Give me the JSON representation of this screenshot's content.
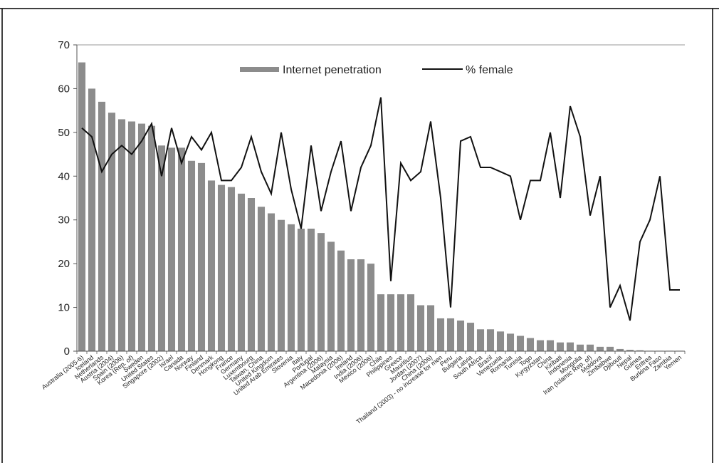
{
  "chart_data": {
    "type": "bar+line",
    "ylim": [
      0,
      70
    ],
    "yticks": [
      0,
      10,
      20,
      30,
      40,
      50,
      60,
      70
    ],
    "grid": false,
    "legend_position": "top-center",
    "categories": [
      "Australia (2005-6)",
      "Iceland",
      "Netherlands",
      "Austria (2004)",
      "Spain (2006)",
      "Korea (Rep. of)",
      "Sweden",
      "United States",
      "Singapore (2002)",
      "Israel",
      "Canada",
      "Norway",
      "Finland",
      "Denmark",
      "Hongkong",
      "France",
      "Germany",
      "Luxembourg",
      "Taiwan, China",
      "United Kingdom",
      "United Arab Emirates",
      "Slovenia",
      "Italy",
      "Portugal",
      "Argentina (2006)",
      "Malaysia",
      "Macedonia (2006)",
      "Ireland",
      "India (2006)",
      "Mexico (2006)",
      "Chile",
      "Philippines",
      "Greece",
      "Mauritius",
      "Jordan (2007)",
      "China (2006)",
      "Thailand (2003) - no increase for men",
      "Peru",
      "Bulgaria",
      "Latvia",
      "South Africa",
      "Brazil",
      "Venezuela",
      "Romania",
      "Tunisia",
      "Togo",
      "Kyrgyzstan",
      "China",
      "Kiribati",
      "Indonesia",
      "Mongolia",
      "Iran (Islamic Rep. of)",
      "Moldova",
      "Zimbabwe",
      "Djibouti",
      "Nepal",
      "Guinea",
      "Eritrea",
      "Burkina Faso",
      "Zambia",
      "Yemen"
    ],
    "series": [
      {
        "name": "Internet penetration",
        "kind": "bar",
        "color": "#8c8c8c",
        "values": [
          66,
          60,
          57,
          54.5,
          53,
          52.5,
          52,
          51.5,
          47,
          46.5,
          46.5,
          43.5,
          43,
          39,
          38,
          37.5,
          36,
          35,
          33,
          31.5,
          30,
          29,
          28,
          28,
          27,
          25,
          23,
          21,
          21,
          20,
          13,
          13,
          13,
          13,
          10.5,
          10.5,
          7.5,
          7.5,
          7,
          6.5,
          5,
          5,
          4.5,
          4,
          3.5,
          3,
          2.5,
          2.5,
          2,
          2,
          1.5,
          1.5,
          1,
          1,
          0.5,
          0.3,
          0.2,
          0.1,
          0.1,
          0.1,
          0.1
        ]
      },
      {
        "name": "% female",
        "kind": "line",
        "color": "#111111",
        "values": [
          51,
          49,
          41,
          45,
          47,
          45,
          48,
          52,
          40,
          51,
          43,
          49,
          46,
          50,
          39,
          39,
          42,
          49,
          41,
          36,
          50,
          37,
          28,
          47,
          32,
          41,
          48,
          32,
          42,
          47,
          58,
          16,
          43,
          39,
          41,
          52.5,
          35,
          10,
          48,
          49,
          42,
          42,
          41,
          40,
          30,
          39,
          39,
          50,
          35,
          56,
          49,
          31,
          40,
          10,
          15,
          7,
          25,
          30,
          40,
          14,
          14
        ]
      }
    ]
  }
}
